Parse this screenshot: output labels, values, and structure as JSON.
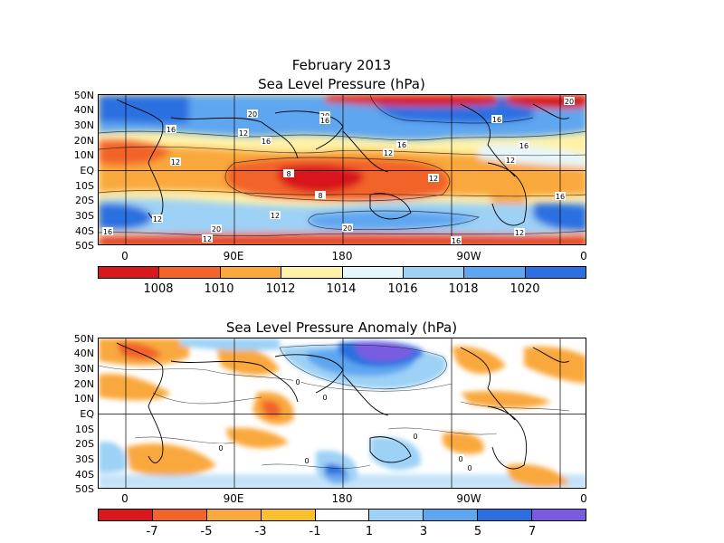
{
  "top": {
    "title1": "February 2013",
    "title2": "Sea Level Pressure (hPa)",
    "lat_ticks": [
      "50N",
      "40N",
      "30N",
      "20N",
      "10N",
      "EQ",
      "10S",
      "20S",
      "30S",
      "40S",
      "50S"
    ],
    "lon_ticks": [
      "0",
      "90E",
      "180",
      "90W",
      "0"
    ],
    "colorbar": {
      "colors": [
        "#d7191c",
        "#f2642a",
        "#f9a83d",
        "#fff2a8",
        "#e7f6fb",
        "#9dd1f5",
        "#5fa6f0",
        "#2c6fe0"
      ],
      "labels": [
        "1008",
        "1010",
        "1012",
        "1014",
        "1016",
        "1018",
        "1020"
      ]
    },
    "contour_labels": [
      "20",
      "20",
      "20",
      "16",
      "16",
      "16",
      "16",
      "16",
      "16",
      "16",
      "12",
      "12",
      "12",
      "12",
      "12",
      "12",
      "12",
      "8",
      "8",
      "20",
      "20",
      "16",
      "12",
      "16",
      "12"
    ]
  },
  "bottom": {
    "title": "Sea Level Pressure Anomaly (hPa)",
    "lat_ticks": [
      "50N",
      "40N",
      "30N",
      "20N",
      "10N",
      "EQ",
      "10S",
      "20S",
      "30S",
      "40S",
      "50S"
    ],
    "lon_ticks": [
      "0",
      "90E",
      "180",
      "90W",
      "0"
    ],
    "colorbar": {
      "colors": [
        "#d7191c",
        "#f2642a",
        "#f9a83d",
        "#fbc02d",
        "#ffffff",
        "#9dd1f5",
        "#5fa6f0",
        "#2c6fe0",
        "#7a5be0"
      ],
      "labels": [
        "-7",
        "-5",
        "-3",
        "-1",
        "1",
        "3",
        "5",
        "7"
      ]
    },
    "contour_labels": [
      "0",
      "0",
      "0",
      "0",
      "0",
      "0",
      "0"
    ]
  }
}
